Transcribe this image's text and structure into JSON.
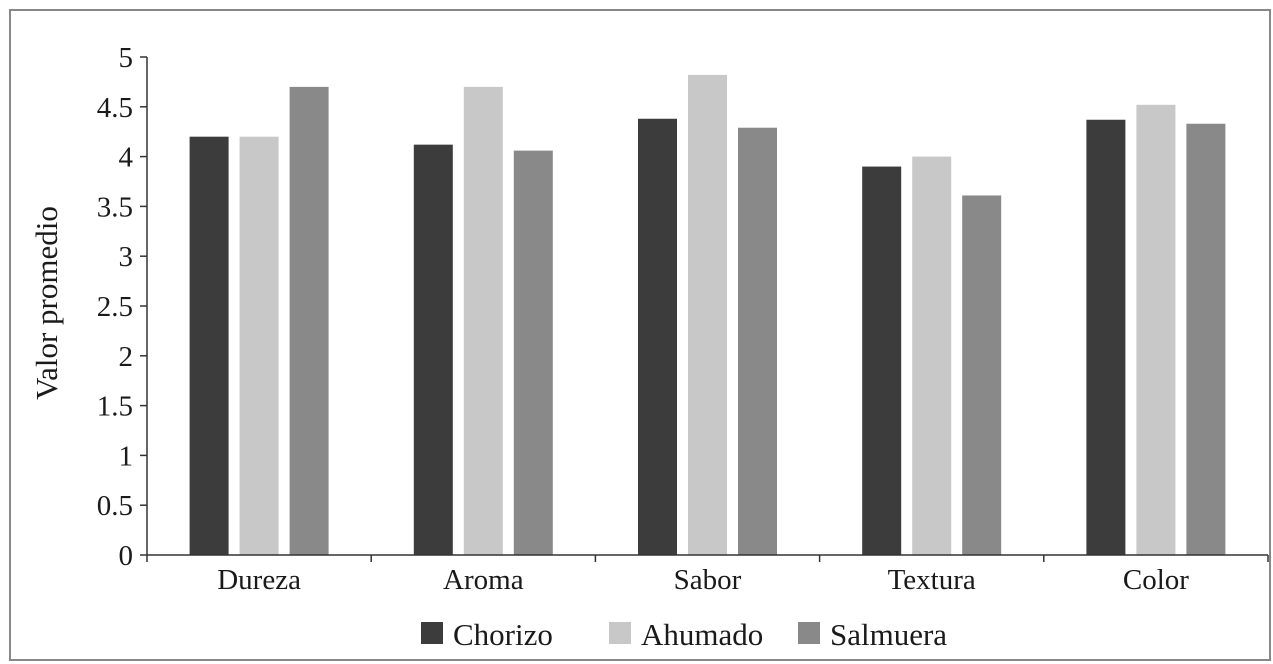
{
  "chart_data": {
    "type": "bar",
    "categories": [
      "Dureza",
      "Aroma",
      "Sabor",
      "Textura",
      "Color"
    ],
    "series": [
      {
        "name": "Chorizo",
        "color": "#3c3c3c",
        "values": [
          4.2,
          4.12,
          4.38,
          3.9,
          4.37
        ]
      },
      {
        "name": "Ahumado",
        "color": "#c8c8c8",
        "values": [
          4.2,
          4.7,
          4.82,
          4.0,
          4.52
        ]
      },
      {
        "name": "Salmuera",
        "color": "#898989",
        "values": [
          4.7,
          4.06,
          4.29,
          3.61,
          4.33
        ]
      }
    ],
    "ylabel": "Valor promedio",
    "ylim": [
      0,
      5
    ],
    "yticks": [
      0,
      0.5,
      1,
      1.5,
      2,
      2.5,
      3,
      3.5,
      4,
      4.5,
      5
    ],
    "ytick_labels": [
      "0",
      "0.5",
      "1",
      "1.5",
      "2",
      "2.5",
      "3",
      "3.5",
      "4",
      "4.5",
      "5"
    ],
    "grid": false,
    "legend_position": "bottom"
  }
}
